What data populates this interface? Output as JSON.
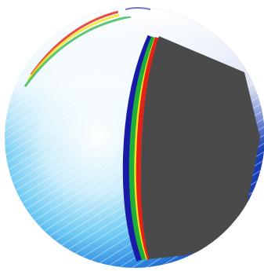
{
  "image": {
    "subject": "sphere-cutaway",
    "colors": {
      "background": "#ffffff",
      "cut_face": "#4a4a4a",
      "inner_band_red": "#e32218",
      "inner_band_yellow": "#f0e21a",
      "inner_band_green": "#1fae3a",
      "shell_dark_blue": "#1a1aa8",
      "shell_blue": "#1f6bd6",
      "shell_light_blue": "#3fb5ef",
      "shell_cyan": "#8fdcf7",
      "shell_white": "#ffffff"
    }
  }
}
